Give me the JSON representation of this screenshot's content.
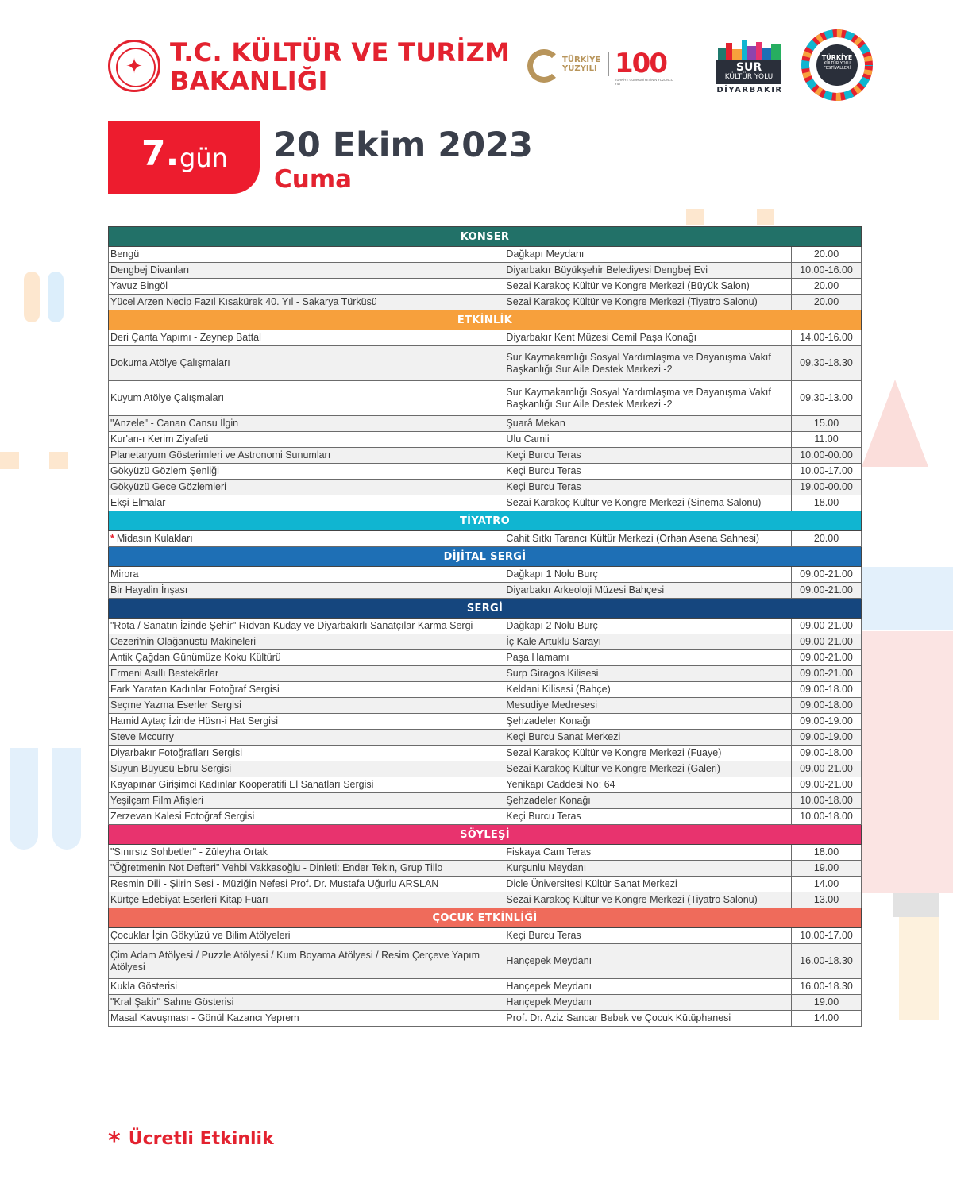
{
  "header": {
    "ministry_line1": "T.C. KÜLTÜR VE TURİZM",
    "ministry_line2": "BAKANLIĞI",
    "turkiye_yuzyili_line1": "TÜRKİYE",
    "turkiye_yuzyili_line2": "YÜZYILI",
    "hundred": "100",
    "hundred_caption": "TÜRKİYE CUMHURİYETİNİN YÜZÜNCÜ YILI",
    "sur_title": "SUR",
    "sur_subtitle": "KÜLTÜR YOLU",
    "sur_city": "DİYARBAKIR",
    "fest_title": "TÜRKİYE",
    "fest_subtitle": "KÜLTÜR YOLU FESTİVALLERİ"
  },
  "day": {
    "number": "7.",
    "word": "gün",
    "date": "20 Ekim 2023",
    "weekday": "Cuma"
  },
  "sections": [
    {
      "title": "KONSER",
      "color": "#227168",
      "events": [
        {
          "name": "Bengü",
          "venue": "Dağkapı Meydanı",
          "time": "20.00"
        },
        {
          "name": "Dengbej Divanları",
          "venue": "Diyarbakır Büyükşehir Belediyesi Dengbej Evi",
          "time": "10.00-16.00"
        },
        {
          "name": "Yavuz Bingöl",
          "venue": "Sezai Karakoç Kültür ve Kongre Merkezi (Büyük Salon)",
          "time": "20.00"
        },
        {
          "name": "Yücel Arzen Necip Fazıl Kısakürek 40. Yıl - Sakarya Türküsü",
          "venue": "Sezai Karakoç Kültür ve Kongre Merkezi (Tiyatro Salonu)",
          "time": "20.00"
        }
      ]
    },
    {
      "title": "ETKİNLİK",
      "color": "#f7a03c",
      "events": [
        {
          "name": "Deri Çanta Yapımı - Zeynep Battal",
          "venue": "Diyarbakır Kent Müzesi Cemil Paşa Konağı",
          "time": "14.00-16.00"
        },
        {
          "name": "Dokuma Atölye Çalışmaları",
          "venue": "Sur Kaymakamlığı Sosyal Yardımlaşma ve Dayanışma Vakıf Başkanlığı Sur Aile Destek Merkezi -2",
          "time": "09.30-18.30",
          "tall": true
        },
        {
          "name": "Kuyum Atölye Çalışmaları",
          "venue": "Sur Kaymakamlığı Sosyal Yardımlaşma ve Dayanışma Vakıf Başkanlığı Sur Aile Destek Merkezi -2",
          "time": "09.30-13.00",
          "tall": true
        },
        {
          "name": "\"Anzele\" - Canan Cansu İlgin",
          "venue": "Şuarâ Mekan",
          "time": "15.00"
        },
        {
          "name": "Kur'an-ı Kerim Ziyafeti",
          "venue": "Ulu Camii",
          "time": "11.00"
        },
        {
          "name": "Planetaryum Gösterimleri ve Astronomi Sunumları",
          "venue": "Keçi Burcu Teras",
          "time": "10.00-00.00"
        },
        {
          "name": "Gökyüzü Gözlem Şenliği",
          "venue": "Keçi Burcu Teras",
          "time": "10.00-17.00"
        },
        {
          "name": "Gökyüzü Gece Gözlemleri",
          "venue": "Keçi Burcu Teras",
          "time": "19.00-00.00"
        },
        {
          "name": "Ekşi Elmalar",
          "venue": "Sezai Karakoç Kültür ve Kongre Merkezi (Sinema Salonu)",
          "time": "18.00"
        }
      ]
    },
    {
      "title": "TİYATRO",
      "color": "#10b5d1",
      "events": [
        {
          "name": "Midasın Kulakları",
          "venue": "Cahit Sıtkı Tarancı Kültür Merkezi (Orhan Asena Sahnesi)",
          "time": "20.00",
          "paid": true
        }
      ]
    },
    {
      "title": "DİJİTAL SERGİ",
      "color": "#1e6fb5",
      "events": [
        {
          "name": "Mirora",
          "venue": "Dağkapı 1 Nolu Burç",
          "time": "09.00-21.00"
        },
        {
          "name": "Bir Hayalin İnşası",
          "venue": "Diyarbakır Arkeoloji Müzesi Bahçesi",
          "time": "09.00-21.00"
        }
      ]
    },
    {
      "title": "SERGİ",
      "color": "#15467e",
      "events": [
        {
          "name": "\"Rota / Sanatın İzinde Şehir\" Rıdvan Kuday ve Diyarbakırlı Sanatçılar Karma Sergi",
          "venue": "Dağkapı 2 Nolu Burç",
          "time": "09.00-21.00"
        },
        {
          "name": "Cezeri'nin Olağanüstü Makineleri",
          "venue": "İç Kale Artuklu Sarayı",
          "time": "09.00-21.00"
        },
        {
          "name": "Antik Çağdan Günümüze Koku Kültürü",
          "venue": "Paşa Hamamı",
          "time": "09.00-21.00"
        },
        {
          "name": "Ermeni Asıllı Bestekârlar",
          "venue": "Surp Giragos Kilisesi",
          "time": "09.00-21.00"
        },
        {
          "name": "Fark Yaratan Kadınlar Fotoğraf Sergisi",
          "venue": "Keldani Kilisesi (Bahçe)",
          "time": "09.00-18.00"
        },
        {
          "name": "Seçme Yazma Eserler Sergisi",
          "venue": "Mesudiye Medresesi",
          "time": "09.00-18.00"
        },
        {
          "name": "Hamid Aytaç İzinde Hüsn-i Hat Sergisi",
          "venue": "Şehzadeler Konağı",
          "time": "09.00-19.00"
        },
        {
          "name": "Steve Mccurry",
          "venue": "Keçi Burcu Sanat Merkezi",
          "time": "09.00-19.00"
        },
        {
          "name": "Diyarbakır Fotoğrafları Sergisi",
          "venue": "Sezai Karakoç Kültür ve Kongre Merkezi (Fuaye)",
          "time": "09.00-18.00"
        },
        {
          "name": "Suyun Büyüsü Ebru Sergisi",
          "venue": "Sezai Karakoç Kültür ve Kongre Merkezi (Galeri)",
          "time": "09.00-21.00"
        },
        {
          "name": "Kayapınar Girişimci Kadınlar Kooperatifi El Sanatları Sergisi",
          "venue": "Yenikapı Caddesi No: 64",
          "time": "09.00-21.00"
        },
        {
          "name": "Yeşilçam Film Afişleri",
          "venue": "Şehzadeler Konağı",
          "time": "10.00-18.00"
        },
        {
          "name": "Zerzevan Kalesi Fotoğraf Sergisi",
          "venue": "Keçi Burcu Teras",
          "time": "10.00-18.00"
        }
      ]
    },
    {
      "title": "SÖYLEŞİ",
      "color": "#e8336e",
      "events": [
        {
          "name": "\"Sınırsız Sohbetler\" - Züleyha Ortak",
          "venue": "Fiskaya Cam Teras",
          "time": "18.00"
        },
        {
          "name": "\"Öğretmenin Not Defteri\" Vehbi Vakkasoğlu - Dinleti: Ender Tekin, Grup Tillo",
          "venue": "Kurşunlu Meydanı",
          "time": "19.00"
        },
        {
          "name": "Resmin Dili - Şiirin Sesi - Müziğin Nefesi  Prof. Dr. Mustafa Uğurlu ARSLAN",
          "venue": "Dicle Üniversitesi Kültür Sanat Merkezi",
          "time": "14.00"
        },
        {
          "name": "Kürtçe Edebiyat Eserleri Kitap Fuarı",
          "venue": "Sezai Karakoç Kültür ve Kongre Merkezi (Tiyatro Salonu)",
          "time": "13.00"
        }
      ]
    },
    {
      "title": "ÇOCUK ETKİNLİĞİ",
      "color": "#ef6b5b",
      "events": [
        {
          "name": "Çocuklar İçin Gökyüzü ve Bilim Atölyeleri",
          "venue": "Keçi Burcu Teras",
          "time": "10.00-17.00"
        },
        {
          "name": "Çim Adam Atölyesi / Puzzle Atölyesi / Kum Boyama Atölyesi / Resim Çerçeve Yapım Atölyesi",
          "venue": "Hançepek Meydanı",
          "time": "16.00-18.30",
          "tall": true
        },
        {
          "name": "Kukla Gösterisi",
          "venue": "Hançepek Meydanı",
          "time": "16.00-18.30"
        },
        {
          "name": "\"Kral Şakir\" Sahne Gösterisi",
          "venue": "Hançepek Meydanı",
          "time": "19.00"
        },
        {
          "name": "Masal Kavuşması - Gönül Kazancı Yeprem",
          "venue": "Prof. Dr. Aziz Sancar Bebek ve Çocuk Kütüphanesi",
          "time": "14.00"
        }
      ]
    }
  ],
  "legend": {
    "star": "*",
    "label": "Ücretli Etkinlik"
  }
}
